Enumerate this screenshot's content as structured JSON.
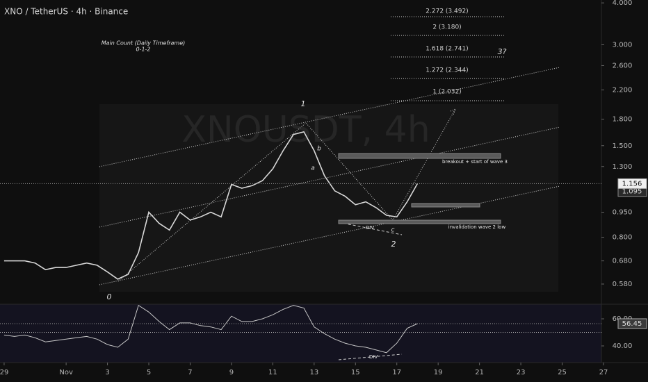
{
  "chart_data": [
    {
      "type": "line",
      "title": "XNO / TetherUS · 4h · Binance",
      "watermark": "XNOUSDT, 4h",
      "log_scale": true,
      "color": "#d8d8d8",
      "x": [
        0,
        0.5,
        1,
        1.5,
        2,
        2.5,
        3,
        3.5,
        4,
        4.5,
        5,
        5.5,
        6,
        6.5,
        7,
        7.5,
        8,
        8.5,
        9,
        9.5,
        10,
        10.5,
        11,
        11.5,
        12,
        12.5,
        13,
        13.5,
        14,
        14.5,
        15,
        15.5,
        16,
        16.5,
        17,
        17.5,
        18,
        18.5,
        19,
        19.5,
        20
      ],
      "values": [
        0.68,
        0.68,
        0.68,
        0.67,
        0.64,
        0.65,
        0.65,
        0.66,
        0.67,
        0.66,
        0.63,
        0.6,
        0.62,
        0.72,
        0.95,
        0.88,
        0.84,
        0.95,
        0.9,
        0.92,
        0.95,
        0.92,
        1.15,
        1.12,
        1.14,
        1.18,
        1.28,
        1.45,
        1.62,
        1.65,
        1.45,
        1.22,
        1.1,
        1.06,
        1.0,
        1.02,
        0.98,
        0.93,
        0.92,
        1.02,
        1.156
      ],
      "value_labels_last": "1.156",
      "hline": {
        "value": 1.095,
        "label": "1.095"
      },
      "xlim": [
        -0.2,
        28.9
      ],
      "ylim": [
        0.505,
        4.08
      ],
      "yticks": [
        {
          "value": 4,
          "label": "4.000"
        },
        {
          "value": 3,
          "label": "3.000"
        },
        {
          "value": 2.6,
          "label": "2.600"
        },
        {
          "value": 2.2,
          "label": "2.200"
        },
        {
          "value": 1.8,
          "label": "1.800"
        },
        {
          "value": 1.5,
          "label": "1.500"
        },
        {
          "value": 1.3,
          "label": "1.300"
        },
        {
          "value": 0.95,
          "label": "0.950"
        },
        {
          "value": 0.8,
          "label": "0.800"
        },
        {
          "value": 0.68,
          "label": "0.680"
        },
        {
          "value": 0.58,
          "label": "0.580"
        }
      ],
      "annotations": {
        "main_count": "Main Count (Daily Timeframe)",
        "count_seq": "0-1-2",
        "w0": "0",
        "w1": "1",
        "w2": "2",
        "w3": "3?",
        "a": "a",
        "b": "b",
        "c": "c",
        "div": "DIV",
        "fib": [
          "2.272 (3.492)",
          "2 (3.180)",
          "1.618 (2.741)",
          "1.272 (2.344)",
          "1 (2.032)"
        ],
        "breakout": "breakout + start of wave 3",
        "invalidation": "invalidation wave 2 low"
      }
    },
    {
      "type": "line",
      "color": "#c8c8c8",
      "div": "DIV",
      "x": [
        0,
        0.5,
        1,
        1.5,
        2,
        2.5,
        3,
        3.5,
        4,
        4.5,
        5,
        5.5,
        6,
        6.5,
        7,
        7.5,
        8,
        8.5,
        9,
        9.5,
        10,
        10.5,
        11,
        11.5,
        12,
        12.5,
        13,
        13.5,
        14,
        14.5,
        15,
        15.5,
        16,
        16.5,
        17,
        17.5,
        18,
        18.5,
        19,
        19.5,
        20
      ],
      "values": [
        48,
        47,
        48,
        46,
        43,
        44,
        45,
        46,
        47,
        45,
        41,
        39,
        45,
        70,
        65,
        58,
        52,
        57,
        57,
        55,
        54,
        52,
        62,
        58,
        58,
        60,
        63,
        67,
        70,
        68,
        54,
        49,
        45,
        42,
        40,
        39,
        37,
        35,
        42,
        53,
        56.45
      ],
      "value_label_last": "56.45",
      "midline": 50,
      "ylim": [
        27.7,
        70.8
      ],
      "yticks": [
        {
          "value": 40,
          "label": "40.00"
        },
        {
          "value": 60,
          "label": "60.00"
        }
      ],
      "xlim": [
        -0.2,
        28.9
      ],
      "xticks": [
        {
          "value": 0,
          "label": "29"
        },
        {
          "value": 3,
          "label": "Nov"
        },
        {
          "value": 5,
          "label": "3"
        },
        {
          "value": 7,
          "label": "5"
        },
        {
          "value": 9,
          "label": "7"
        },
        {
          "value": 11,
          "label": "9"
        },
        {
          "value": 13,
          "label": "11"
        },
        {
          "value": 15,
          "label": "13"
        },
        {
          "value": 17,
          "label": "15"
        },
        {
          "value": 19,
          "label": "17"
        },
        {
          "value": 21,
          "label": "19"
        },
        {
          "value": 23,
          "label": "21"
        },
        {
          "value": 25,
          "label": "23"
        },
        {
          "value": 27,
          "label": "25"
        },
        {
          "value": 29,
          "label": "27"
        }
      ]
    }
  ]
}
